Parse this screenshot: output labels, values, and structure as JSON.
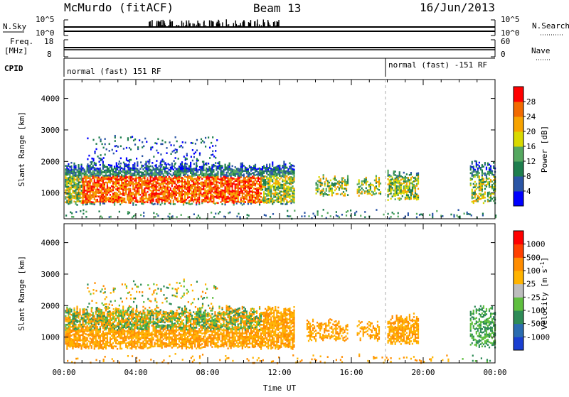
{
  "header": {
    "station": "McMurdo (fitACF)",
    "beam": "Beam 13",
    "date": "16/Jun/2013"
  },
  "status_panels": {
    "nsky_label": "N.Sky",
    "nsearch_label": "N.Search",
    "nsky_ticks": [
      "10^5",
      "10^0"
    ],
    "nsearch_ticks": [
      "10^5",
      "10^0"
    ],
    "freq_label_1": "Freq.",
    "freq_label_2": "[MHz]",
    "freq_ticks": [
      "18",
      "8"
    ],
    "nave_label": "Nave",
    "nave_ticks": [
      "60",
      "0"
    ],
    "cpid_label": "CPID",
    "cpid_segments": [
      {
        "text": "normal (fast) 151 RF",
        "start_hour": 0
      },
      {
        "text": "normal (fast) -151 RF",
        "start_hour": 18
      }
    ]
  },
  "chart_data": [
    {
      "type": "heatmap",
      "name": "power",
      "ylabel": "Slant Range [km]",
      "ylim": [
        180,
        4600
      ],
      "yticks": [
        1000,
        2000,
        3000,
        4000
      ],
      "xlim": [
        0,
        24
      ],
      "colorbar": {
        "label": "Power [dB]",
        "ticks": [
          "28",
          "24",
          "20",
          "16",
          "12",
          "8",
          "4"
        ],
        "colors": [
          "#0000ff",
          "#2a55a5",
          "#1e7e4e",
          "#55a860",
          "#d9d900",
          "#f7a300",
          "#f26a00",
          "#ff0000"
        ]
      }
    },
    {
      "type": "heatmap",
      "name": "velocity",
      "ylabel": "Slant Range [km]",
      "ylim": [
        180,
        4600
      ],
      "yticks": [
        1000,
        2000,
        3000,
        4000
      ],
      "xlim": [
        0,
        24
      ],
      "xlabel": "Time UT",
      "xticks": [
        "00:00",
        "04:00",
        "08:00",
        "12:00",
        "16:00",
        "20:00",
        "00:00"
      ],
      "colorbar": {
        "label": "Velocity [m s-1]",
        "ticks": [
          "1000",
          "500",
          "100",
          "25",
          "-25",
          "-100",
          "-500",
          "-1000"
        ],
        "colors": [
          "#1a3fd1",
          "#2b6cb0",
          "#2e8b57",
          "#5fbf3f",
          "#bdbdbd",
          "#ffb300",
          "#ff8c00",
          "#ff4000",
          "#ff0000"
        ]
      }
    }
  ]
}
